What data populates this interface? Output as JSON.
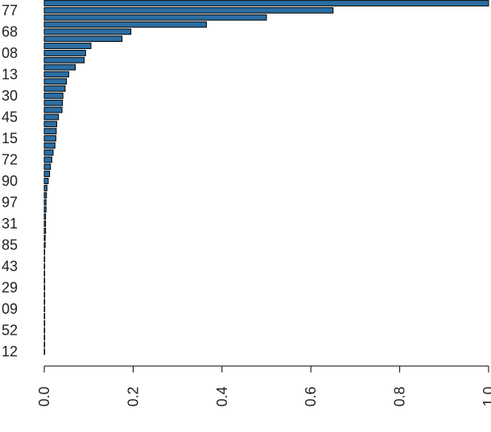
{
  "chart_data": {
    "type": "hbar",
    "color": "#2b6ea3",
    "categories": [
      null,
      "77",
      null,
      null,
      "68",
      null,
      null,
      "08",
      null,
      null,
      "13",
      null,
      null,
      "30",
      null,
      null,
      "45",
      null,
      null,
      "15",
      null,
      null,
      "72",
      null,
      null,
      "90",
      null,
      null,
      "97",
      null,
      null,
      "31",
      null,
      null,
      "85",
      null,
      null,
      "43",
      null,
      null,
      "29",
      null,
      null,
      "09",
      null,
      null,
      "52",
      null,
      null,
      "12"
    ],
    "values": [
      1.0,
      0.65,
      0.5,
      0.365,
      0.195,
      0.175,
      0.105,
      0.093,
      0.09,
      0.07,
      0.055,
      0.05,
      0.047,
      0.042,
      0.041,
      0.04,
      0.032,
      0.028,
      0.027,
      0.026,
      0.024,
      0.02,
      0.017,
      0.014,
      0.012,
      0.009,
      0.006,
      0.005,
      0.004,
      0.004,
      0.003,
      0.003,
      0.003,
      0.002,
      0.002,
      0.001,
      0.001,
      0.001,
      0.001,
      0.001,
      0.001,
      0.001,
      0.001,
      0.001,
      0.001,
      0.001,
      0.001,
      0.001,
      0.001,
      0.001
    ],
    "xlim": [
      0,
      1
    ],
    "xticks": [
      {
        "value": 0,
        "label": "0.0"
      },
      {
        "value": 0.2,
        "label": "0.2"
      },
      {
        "value": 0.4,
        "label": "0.4"
      },
      {
        "value": 0.6,
        "label": "0.6"
      },
      {
        "value": 0.8,
        "label": "0.8"
      },
      {
        "value": 1,
        "label": "1.0"
      }
    ]
  }
}
